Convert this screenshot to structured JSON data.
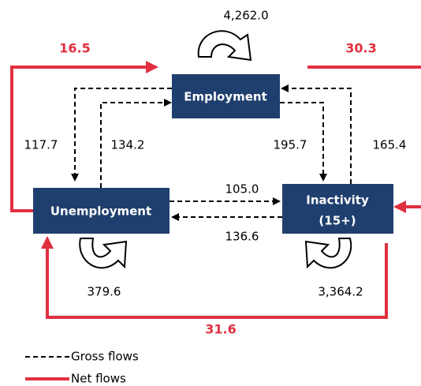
{
  "nodes": [
    {
      "label": "Employment"
    },
    {
      "label": "Unemployment"
    },
    {
      "label": "Inactivity",
      "sublabel": "(15+)"
    }
  ],
  "gross_flows": [
    {
      "from": "Employment",
      "to": "Employment",
      "value": "4,262.0"
    },
    {
      "from": "Employment",
      "to": "Unemployment",
      "value": "117.7"
    },
    {
      "from": "Unemployment",
      "to": "Employment",
      "value": "134.2"
    },
    {
      "from": "Employment",
      "to": "Inactivity",
      "value": "195.7"
    },
    {
      "from": "Inactivity",
      "to": "Employment",
      "value": "165.4"
    },
    {
      "from": "Unemployment",
      "to": "Inactivity",
      "value": "105.0"
    },
    {
      "from": "Inactivity",
      "to": "Unemployment",
      "value": "136.6"
    },
    {
      "from": "Unemployment",
      "to": "Unemployment",
      "value": "379.6"
    },
    {
      "from": "Inactivity",
      "to": "Inactivity",
      "value": "3,364.2"
    }
  ],
  "net_flows": [
    {
      "to": "Employment",
      "value": "16.5"
    },
    {
      "to": "Inactivity",
      "value": "30.3"
    },
    {
      "to": "Unemployment",
      "value": "31.6"
    }
  ],
  "legend": [
    "Gross flows",
    "Net flows"
  ]
}
